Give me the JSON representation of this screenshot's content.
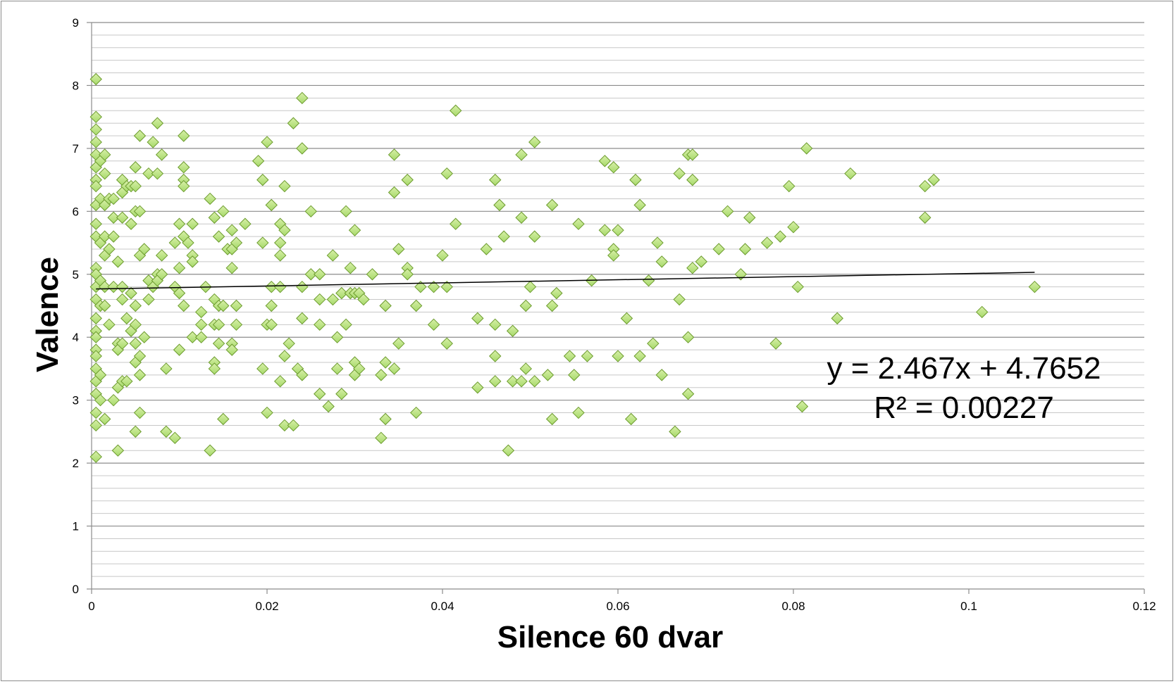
{
  "chart_data": {
    "type": "scatter",
    "title": "",
    "xlabel": "Silence 60 dvar",
    "ylabel": "Valence",
    "xlim": [
      0,
      0.12
    ],
    "ylim": [
      0,
      9
    ],
    "x_ticks": [
      "0",
      "0.02",
      "0.04",
      "0.06",
      "0.08",
      "0.1",
      "0.12"
    ],
    "y_ticks": [
      "0",
      "1",
      "2",
      "3",
      "4",
      "5",
      "6",
      "7",
      "8",
      "9"
    ],
    "grid": "horizontal major and minor",
    "legend": "none",
    "marker": "diamond",
    "marker_color": "#a6d96a",
    "marker_edge_color": "#6c9b2e",
    "trendline": {
      "type": "linear",
      "slope": 2.467,
      "intercept": 4.7652,
      "x_range": [
        0.0005,
        0.1075
      ],
      "color": "#000000",
      "equation_label": "y = 2.467x + 4.7652",
      "r2_label": "R² = 0.00227"
    },
    "series": [
      {
        "points": [
          [
            0.0005,
            8.1
          ],
          [
            0.0005,
            7.5
          ],
          [
            0.0005,
            7.3
          ],
          [
            0.0005,
            7.1
          ],
          [
            0.0005,
            6.9
          ],
          [
            0.0005,
            6.7
          ],
          [
            0.0005,
            6.5
          ],
          [
            0.0005,
            6.4
          ],
          [
            0.0005,
            6.1
          ],
          [
            0.0005,
            5.8
          ],
          [
            0.0005,
            5.6
          ],
          [
            0.0005,
            5.1
          ],
          [
            0.0005,
            5.0
          ],
          [
            0.0005,
            4.8
          ],
          [
            0.0005,
            4.6
          ],
          [
            0.0005,
            4.3
          ],
          [
            0.0005,
            4.1
          ],
          [
            0.0005,
            4.0
          ],
          [
            0.0005,
            3.8
          ],
          [
            0.0005,
            3.7
          ],
          [
            0.0005,
            3.5
          ],
          [
            0.0005,
            3.3
          ],
          [
            0.0005,
            3.1
          ],
          [
            0.0005,
            2.8
          ],
          [
            0.0005,
            2.6
          ],
          [
            0.0005,
            2.1
          ],
          [
            0.001,
            6.8
          ],
          [
            0.001,
            6.2
          ],
          [
            0.001,
            5.5
          ],
          [
            0.001,
            4.9
          ],
          [
            0.001,
            4.5
          ],
          [
            0.001,
            3.4
          ],
          [
            0.001,
            3.0
          ],
          [
            0.0015,
            6.9
          ],
          [
            0.0015,
            6.6
          ],
          [
            0.0015,
            6.1
          ],
          [
            0.0015,
            5.6
          ],
          [
            0.0015,
            5.3
          ],
          [
            0.0015,
            4.8
          ],
          [
            0.0015,
            4.5
          ],
          [
            0.0015,
            2.7
          ],
          [
            0.002,
            6.2
          ],
          [
            0.002,
            5.4
          ],
          [
            0.002,
            4.2
          ],
          [
            0.0025,
            6.2
          ],
          [
            0.0025,
            5.9
          ],
          [
            0.0025,
            5.6
          ],
          [
            0.0025,
            4.8
          ],
          [
            0.0025,
            3.0
          ],
          [
            0.003,
            5.2
          ],
          [
            0.003,
            3.9
          ],
          [
            0.003,
            3.8
          ],
          [
            0.003,
            3.2
          ],
          [
            0.003,
            2.2
          ],
          [
            0.0035,
            6.5
          ],
          [
            0.0035,
            6.3
          ],
          [
            0.0035,
            5.9
          ],
          [
            0.0035,
            4.8
          ],
          [
            0.0035,
            4.6
          ],
          [
            0.0035,
            3.9
          ],
          [
            0.0035,
            3.3
          ],
          [
            0.004,
            6.4
          ],
          [
            0.004,
            4.3
          ],
          [
            0.004,
            3.3
          ],
          [
            0.0045,
            6.4
          ],
          [
            0.0045,
            5.8
          ],
          [
            0.0045,
            4.7
          ],
          [
            0.0045,
            4.1
          ],
          [
            0.005,
            6.7
          ],
          [
            0.005,
            6.4
          ],
          [
            0.005,
            6.0
          ],
          [
            0.005,
            4.5
          ],
          [
            0.005,
            4.2
          ],
          [
            0.005,
            3.9
          ],
          [
            0.005,
            3.6
          ],
          [
            0.005,
            2.5
          ],
          [
            0.0055,
            7.2
          ],
          [
            0.0055,
            6.0
          ],
          [
            0.0055,
            5.3
          ],
          [
            0.0055,
            3.7
          ],
          [
            0.0055,
            3.4
          ],
          [
            0.0055,
            2.8
          ],
          [
            0.006,
            5.4
          ],
          [
            0.006,
            4.0
          ],
          [
            0.0065,
            6.6
          ],
          [
            0.0065,
            4.9
          ],
          [
            0.0065,
            4.6
          ],
          [
            0.007,
            7.1
          ],
          [
            0.007,
            4.8
          ],
          [
            0.0075,
            7.4
          ],
          [
            0.0075,
            6.6
          ],
          [
            0.0075,
            5.0
          ],
          [
            0.0075,
            4.9
          ],
          [
            0.008,
            6.9
          ],
          [
            0.008,
            5.3
          ],
          [
            0.008,
            5.0
          ],
          [
            0.0085,
            3.5
          ],
          [
            0.0085,
            2.5
          ],
          [
            0.0095,
            5.5
          ],
          [
            0.0095,
            4.8
          ],
          [
            0.0095,
            2.4
          ],
          [
            0.01,
            5.8
          ],
          [
            0.01,
            5.1
          ],
          [
            0.01,
            4.7
          ],
          [
            0.01,
            3.8
          ],
          [
            0.0105,
            7.2
          ],
          [
            0.0105,
            6.7
          ],
          [
            0.0105,
            6.5
          ],
          [
            0.0105,
            6.4
          ],
          [
            0.0105,
            5.6
          ],
          [
            0.0105,
            4.5
          ],
          [
            0.011,
            5.5
          ],
          [
            0.0115,
            5.8
          ],
          [
            0.0115,
            5.3
          ],
          [
            0.0115,
            5.2
          ],
          [
            0.0115,
            4.0
          ],
          [
            0.0125,
            4.4
          ],
          [
            0.0125,
            4.2
          ],
          [
            0.0125,
            4.0
          ],
          [
            0.013,
            4.8
          ],
          [
            0.0135,
            6.2
          ],
          [
            0.0135,
            2.2
          ],
          [
            0.014,
            5.9
          ],
          [
            0.014,
            4.6
          ],
          [
            0.014,
            4.2
          ],
          [
            0.014,
            3.6
          ],
          [
            0.014,
            3.5
          ],
          [
            0.0145,
            5.6
          ],
          [
            0.0145,
            4.5
          ],
          [
            0.0145,
            4.2
          ],
          [
            0.0145,
            3.9
          ],
          [
            0.015,
            6.0
          ],
          [
            0.015,
            4.5
          ],
          [
            0.015,
            2.7
          ],
          [
            0.0155,
            5.4
          ],
          [
            0.016,
            5.7
          ],
          [
            0.016,
            5.4
          ],
          [
            0.016,
            5.1
          ],
          [
            0.016,
            3.9
          ],
          [
            0.016,
            3.8
          ],
          [
            0.0165,
            5.5
          ],
          [
            0.0165,
            4.5
          ],
          [
            0.0165,
            4.2
          ],
          [
            0.0175,
            5.8
          ],
          [
            0.019,
            6.8
          ],
          [
            0.0195,
            6.5
          ],
          [
            0.0195,
            5.5
          ],
          [
            0.0195,
            3.5
          ],
          [
            0.02,
            7.1
          ],
          [
            0.02,
            4.2
          ],
          [
            0.02,
            2.8
          ],
          [
            0.0205,
            6.1
          ],
          [
            0.0205,
            4.8
          ],
          [
            0.0205,
            4.5
          ],
          [
            0.0205,
            4.2
          ],
          [
            0.0215,
            5.8
          ],
          [
            0.0215,
            5.5
          ],
          [
            0.0215,
            5.3
          ],
          [
            0.0215,
            4.8
          ],
          [
            0.0215,
            3.3
          ],
          [
            0.022,
            6.4
          ],
          [
            0.022,
            5.7
          ],
          [
            0.022,
            3.7
          ],
          [
            0.022,
            2.6
          ],
          [
            0.0225,
            3.9
          ],
          [
            0.023,
            7.4
          ],
          [
            0.023,
            2.6
          ],
          [
            0.0235,
            3.5
          ],
          [
            0.024,
            7.8
          ],
          [
            0.024,
            7.0
          ],
          [
            0.024,
            4.8
          ],
          [
            0.024,
            4.3
          ],
          [
            0.024,
            3.4
          ],
          [
            0.025,
            6.0
          ],
          [
            0.025,
            5.0
          ],
          [
            0.026,
            5.0
          ],
          [
            0.026,
            4.6
          ],
          [
            0.026,
            4.2
          ],
          [
            0.026,
            3.1
          ],
          [
            0.027,
            2.9
          ],
          [
            0.0275,
            5.3
          ],
          [
            0.0275,
            4.6
          ],
          [
            0.028,
            4.0
          ],
          [
            0.028,
            3.5
          ],
          [
            0.0285,
            4.7
          ],
          [
            0.0285,
            3.1
          ],
          [
            0.029,
            6.0
          ],
          [
            0.029,
            4.2
          ],
          [
            0.0295,
            5.1
          ],
          [
            0.0295,
            4.7
          ],
          [
            0.03,
            5.7
          ],
          [
            0.03,
            4.7
          ],
          [
            0.03,
            3.6
          ],
          [
            0.03,
            3.4
          ],
          [
            0.0305,
            4.7
          ],
          [
            0.0305,
            3.5
          ],
          [
            0.031,
            4.6
          ],
          [
            0.032,
            5.0
          ],
          [
            0.033,
            3.4
          ],
          [
            0.033,
            2.4
          ],
          [
            0.0335,
            4.5
          ],
          [
            0.0335,
            3.6
          ],
          [
            0.0335,
            2.7
          ],
          [
            0.0345,
            6.9
          ],
          [
            0.0345,
            6.3
          ],
          [
            0.0345,
            3.5
          ],
          [
            0.035,
            5.4
          ],
          [
            0.035,
            3.9
          ],
          [
            0.036,
            6.5
          ],
          [
            0.036,
            5.1
          ],
          [
            0.036,
            5.0
          ],
          [
            0.037,
            4.5
          ],
          [
            0.037,
            2.8
          ],
          [
            0.0375,
            4.8
          ],
          [
            0.039,
            4.8
          ],
          [
            0.039,
            4.2
          ],
          [
            0.04,
            5.3
          ],
          [
            0.0405,
            6.6
          ],
          [
            0.0405,
            4.8
          ],
          [
            0.0405,
            3.9
          ],
          [
            0.0415,
            7.6
          ],
          [
            0.0415,
            5.8
          ],
          [
            0.044,
            4.3
          ],
          [
            0.044,
            3.2
          ],
          [
            0.045,
            5.4
          ],
          [
            0.046,
            6.5
          ],
          [
            0.046,
            4.2
          ],
          [
            0.046,
            3.7
          ],
          [
            0.046,
            3.3
          ],
          [
            0.0465,
            6.1
          ],
          [
            0.047,
            5.6
          ],
          [
            0.0475,
            2.2
          ],
          [
            0.048,
            4.1
          ],
          [
            0.048,
            3.3
          ],
          [
            0.049,
            6.9
          ],
          [
            0.049,
            5.9
          ],
          [
            0.049,
            3.3
          ],
          [
            0.0495,
            4.5
          ],
          [
            0.0495,
            3.5
          ],
          [
            0.05,
            4.8
          ],
          [
            0.0505,
            7.1
          ],
          [
            0.0505,
            5.6
          ],
          [
            0.0505,
            3.3
          ],
          [
            0.052,
            3.4
          ],
          [
            0.0525,
            6.1
          ],
          [
            0.0525,
            4.5
          ],
          [
            0.0525,
            2.7
          ],
          [
            0.053,
            4.7
          ],
          [
            0.0545,
            3.7
          ],
          [
            0.055,
            3.4
          ],
          [
            0.0555,
            5.8
          ],
          [
            0.0555,
            2.8
          ],
          [
            0.0565,
            3.7
          ],
          [
            0.057,
            4.9
          ],
          [
            0.0585,
            6.8
          ],
          [
            0.0585,
            5.7
          ],
          [
            0.0595,
            6.7
          ],
          [
            0.0595,
            5.4
          ],
          [
            0.0595,
            5.3
          ],
          [
            0.06,
            5.7
          ],
          [
            0.06,
            3.7
          ],
          [
            0.061,
            4.3
          ],
          [
            0.0615,
            2.7
          ],
          [
            0.062,
            6.5
          ],
          [
            0.0625,
            6.1
          ],
          [
            0.0625,
            3.7
          ],
          [
            0.0635,
            4.9
          ],
          [
            0.064,
            3.9
          ],
          [
            0.0645,
            5.5
          ],
          [
            0.065,
            5.2
          ],
          [
            0.065,
            3.4
          ],
          [
            0.0665,
            2.5
          ],
          [
            0.067,
            6.6
          ],
          [
            0.067,
            4.6
          ],
          [
            0.068,
            6.9
          ],
          [
            0.068,
            4.0
          ],
          [
            0.068,
            3.1
          ],
          [
            0.0685,
            6.9
          ],
          [
            0.0685,
            6.5
          ],
          [
            0.0685,
            5.1
          ],
          [
            0.0695,
            5.2
          ],
          [
            0.0715,
            5.4
          ],
          [
            0.0725,
            6.0
          ],
          [
            0.074,
            5.0
          ],
          [
            0.0745,
            5.4
          ],
          [
            0.075,
            5.9
          ],
          [
            0.077,
            5.5
          ],
          [
            0.078,
            3.9
          ],
          [
            0.0785,
            5.6
          ],
          [
            0.0795,
            6.4
          ],
          [
            0.08,
            5.75
          ],
          [
            0.0805,
            4.8
          ],
          [
            0.081,
            2.9
          ],
          [
            0.0815,
            7.0
          ],
          [
            0.085,
            4.3
          ],
          [
            0.0865,
            6.6
          ],
          [
            0.095,
            6.4
          ],
          [
            0.095,
            5.9
          ],
          [
            0.096,
            6.5
          ],
          [
            0.1015,
            4.4
          ],
          [
            0.1075,
            4.8
          ]
        ]
      }
    ]
  }
}
